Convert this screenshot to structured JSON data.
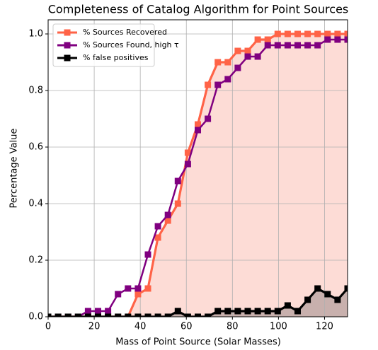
{
  "chart_data": {
    "type": "line",
    "title": "Completeness of Catalog Algorithm for Point Sources",
    "xlabel": "Mass of Point Source (Solar Masses)",
    "ylabel": "Percentage Value",
    "x": [
      0,
      4.333,
      8.667,
      13,
      17.333,
      21.667,
      26,
      30.333,
      34.667,
      39,
      43.333,
      47.667,
      52,
      56.333,
      60.667,
      65,
      69.333,
      73.667,
      78,
      82.333,
      86.667,
      91,
      95.333,
      99.667,
      104,
      108.333,
      112.667,
      117,
      121.333,
      125.667,
      130
    ],
    "series": [
      {
        "name": "% Sources Recovered",
        "color": "#ff6347",
        "fill": "#fddcd6",
        "values": [
          0,
          0,
          0,
          0,
          0,
          0,
          0,
          0,
          0,
          0.08,
          0.1,
          0.28,
          0.34,
          0.4,
          0.58,
          0.68,
          0.82,
          0.9,
          0.9,
          0.94,
          0.94,
          0.98,
          0.98,
          1.0,
          1.0,
          1.0,
          1.0,
          1.0,
          1.0,
          1.0,
          1.0
        ]
      },
      {
        "name": "% Sources Found, high τ",
        "color": "#800080",
        "values": [
          0,
          0,
          0,
          0,
          0.02,
          0.02,
          0.02,
          0.08,
          0.1,
          0.1,
          0.22,
          0.32,
          0.36,
          0.48,
          0.54,
          0.66,
          0.7,
          0.82,
          0.84,
          0.88,
          0.92,
          0.92,
          0.96,
          0.96,
          0.96,
          0.96,
          0.96,
          0.96,
          0.98,
          0.98,
          0.98
        ]
      },
      {
        "name": "% false positives",
        "color": "#000000",
        "fill": "#c8b0ad",
        "values": [
          0,
          0,
          0,
          0,
          0,
          0,
          0,
          0,
          0,
          0,
          0,
          0,
          0,
          0.02,
          0,
          0,
          0,
          0.02,
          0.02,
          0.02,
          0.02,
          0.02,
          0.02,
          0.02,
          0.04,
          0.02,
          0.06,
          0.1,
          0.08,
          0.06,
          0.1
        ]
      }
    ],
    "xlim": [
      0,
      130
    ],
    "xticks": [
      0,
      20,
      40,
      60,
      80,
      100,
      120
    ],
    "ylim": [
      0,
      1.05
    ],
    "yticks": [
      {
        "value": 0,
        "label": "0.0"
      },
      0.2,
      0.4,
      0.6,
      0.8,
      {
        "value": 1,
        "label": "1.0"
      }
    ],
    "grid": true,
    "legend": "upper left"
  }
}
